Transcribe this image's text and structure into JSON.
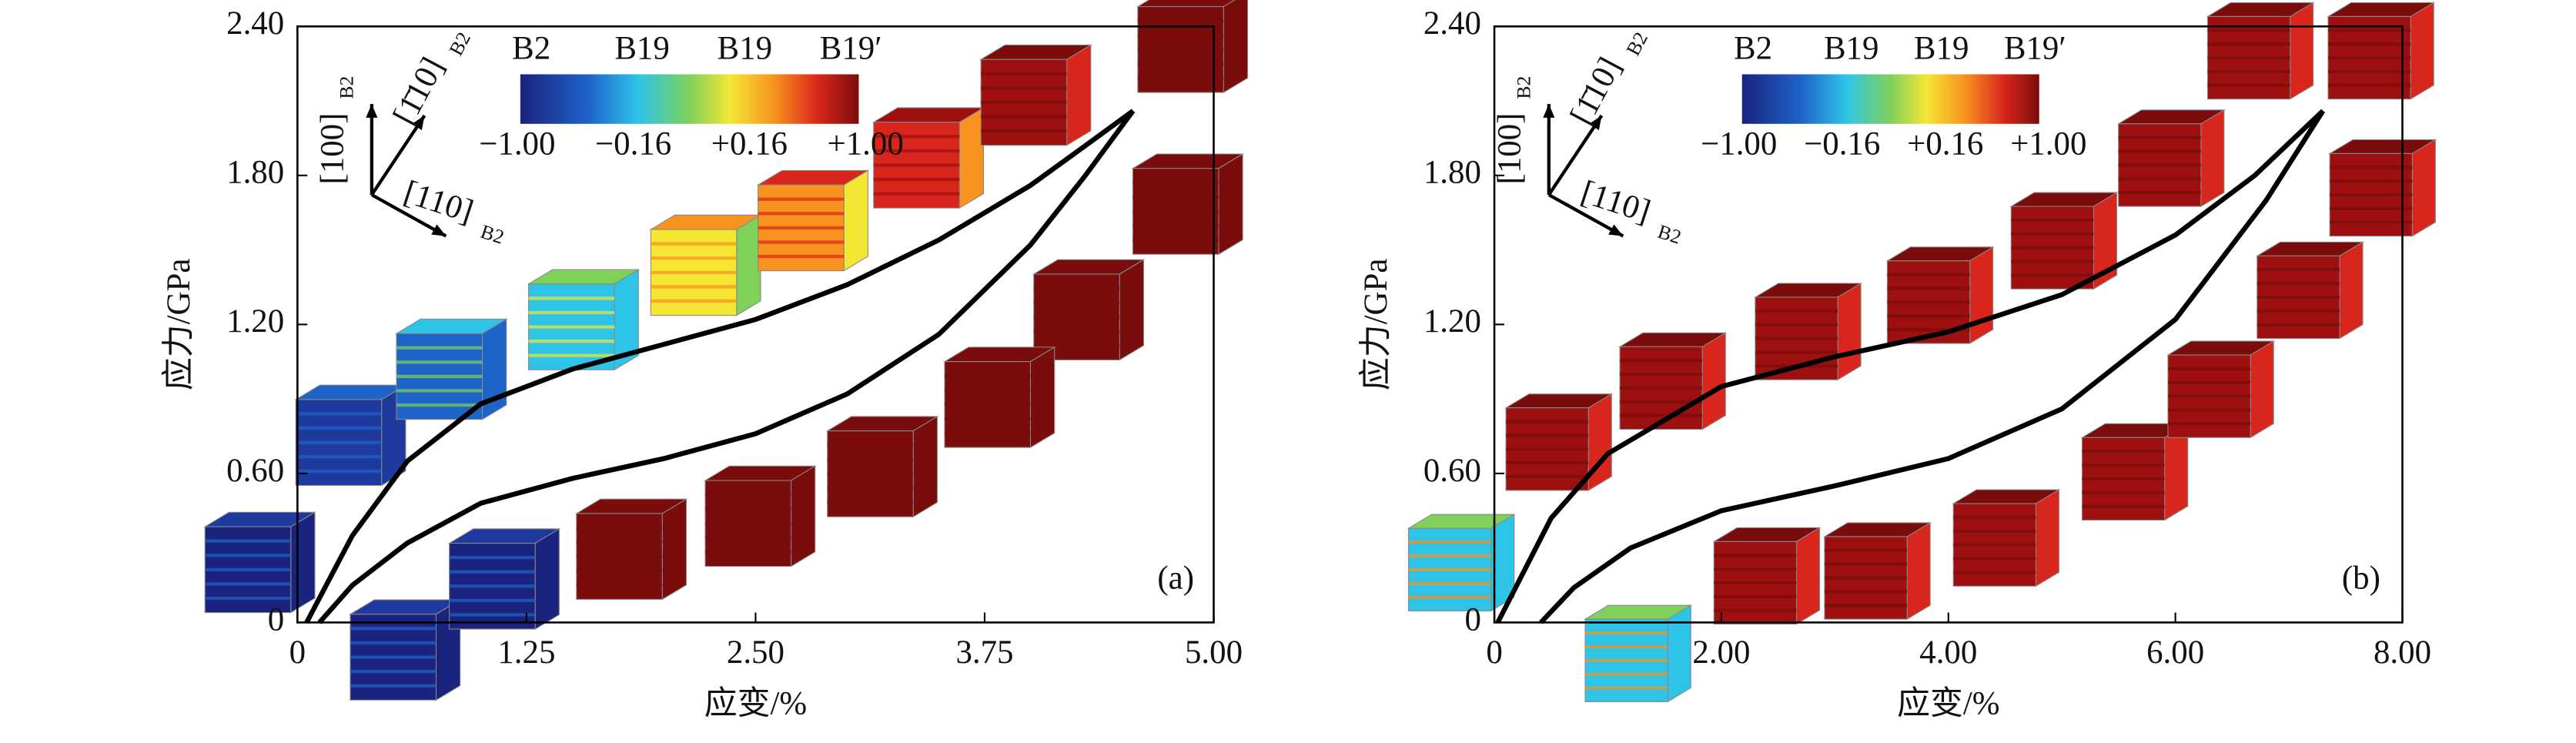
{
  "chart_data": [
    {
      "type": "line",
      "panel_label": "(a)",
      "x_label": "应变/%",
      "y_label": "应力/GPa",
      "xlim": [
        0,
        5
      ],
      "xticks": [
        0,
        1.25,
        {
          "value": 2.5,
          "label": "2.50"
        },
        3.75,
        {
          "value": 5,
          "label": "5.00"
        }
      ],
      "ylim": [
        0,
        2.4
      ],
      "yticks": [
        0,
        {
          "value": 0.6,
          "label": "0.60"
        },
        {
          "value": 1.2,
          "label": "1.20"
        },
        {
          "value": 1.8,
          "label": "1.80"
        },
        {
          "value": 2.4,
          "label": "2.40"
        }
      ],
      "series": [
        {
          "color": "#000000",
          "x": [
            0.05,
            0.3,
            0.6,
            1.0,
            1.5,
            2.0,
            2.5,
            3.0,
            3.5,
            4.0,
            4.3,
            4.56
          ],
          "values": [
            0,
            0.35,
            0.65,
            0.88,
            1.02,
            1.12,
            1.22,
            1.36,
            1.54,
            1.76,
            1.92,
            2.06
          ]
        },
        {
          "color": "#000000",
          "x": [
            4.56,
            4.3,
            4.0,
            3.5,
            3.0,
            2.5,
            2.0,
            1.5,
            1.0,
            0.6,
            0.3,
            0.12
          ],
          "values": [
            2.06,
            1.8,
            1.52,
            1.16,
            0.92,
            0.76,
            0.66,
            0.58,
            0.48,
            0.32,
            0.15,
            0
          ]
        }
      ],
      "phase_labels": [
        {
          "text": "B2",
          "color": "#2b3990"
        },
        {
          "text": "B19",
          "color": "#29abe2"
        },
        {
          "text": "B19",
          "color": "#f7931e"
        },
        {
          "text": "B19′",
          "color": "#9e1f1f"
        }
      ],
      "colorbar_ticks": [
        {
          "text": "−1.00",
          "color": "#2b3990"
        },
        {
          "text": "−0.16",
          "color": "#29abe2"
        },
        {
          "text": "+0.16",
          "color": "#f7931e"
        },
        {
          "text": "+1.00",
          "color": "#9e1f1f"
        }
      ],
      "directions": [
        "[100]",
        "[1̄10]",
        "[110]"
      ],
      "direction_subscript": "B2"
    },
    {
      "type": "line",
      "panel_label": "(b)",
      "x_label": "应变/%",
      "y_label": "应力/GPa",
      "xlim": [
        0,
        8
      ],
      "xticks": [
        0,
        {
          "value": 2,
          "label": "2.00"
        },
        {
          "value": 4,
          "label": "4.00"
        },
        {
          "value": 6,
          "label": "6.00"
        },
        {
          "value": 8,
          "label": "8.00"
        }
      ],
      "ylim": [
        0,
        2.4
      ],
      "yticks": [
        0,
        {
          "value": 0.6,
          "label": "0.60"
        },
        {
          "value": 1.2,
          "label": "1.20"
        },
        {
          "value": 1.8,
          "label": "1.80"
        },
        {
          "value": 2.4,
          "label": "2.40"
        }
      ],
      "series": [
        {
          "color": "#000000",
          "x": [
            0.03,
            0.5,
            1.0,
            2.0,
            3.0,
            4.0,
            5.0,
            6.0,
            6.7,
            7.3
          ],
          "values": [
            0,
            0.42,
            0.68,
            0.95,
            1.07,
            1.17,
            1.32,
            1.56,
            1.8,
            2.06
          ]
        },
        {
          "color": "#000000",
          "x": [
            7.3,
            6.8,
            6.0,
            5.0,
            4.0,
            3.0,
            2.0,
            1.2,
            0.7,
            0.41
          ],
          "values": [
            2.06,
            1.7,
            1.22,
            0.86,
            0.66,
            0.55,
            0.45,
            0.3,
            0.14,
            0
          ]
        }
      ],
      "phase_labels": [
        {
          "text": "B2",
          "color": "#2b3990"
        },
        {
          "text": "B19",
          "color": "#29abe2"
        },
        {
          "text": "B19",
          "color": "#f7931e"
        },
        {
          "text": "B19′",
          "color": "#9e1f1f"
        }
      ],
      "colorbar_ticks": [
        {
          "text": "−1.00",
          "color": "#2b3990"
        },
        {
          "text": "−0.16",
          "color": "#29abe2"
        },
        {
          "text": "+0.16",
          "color": "#f7931e"
        },
        {
          "text": "+1.00",
          "color": "#9e1f1f"
        }
      ],
      "directions": [
        "[100]",
        "[1̄10]",
        "[110]"
      ],
      "direction_subscript": "B2"
    }
  ]
}
